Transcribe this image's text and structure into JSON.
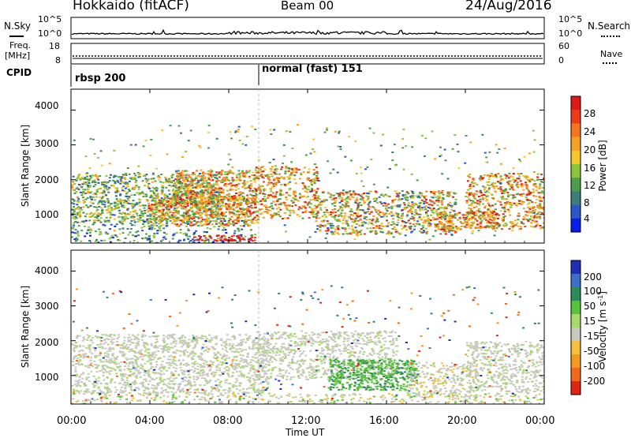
{
  "header": {
    "station": "Hokkaido (fitACF)",
    "beam": "Beam 00",
    "date": "24/Aug/2016"
  },
  "nsky_panel": {
    "label": "N.Sky",
    "right_label": "N.Search",
    "tick_top": "10^5",
    "tick_bottom": "10^0"
  },
  "freq_panel": {
    "label_top": "Freq.",
    "label_unit": "[MHz]",
    "tick_top": "18",
    "tick_bottom": "8",
    "right_tick_top": "60",
    "right_tick_bottom": "0",
    "right_label": "Nave"
  },
  "cpid_panel": {
    "label": "CPID",
    "modes": [
      {
        "text": "rbsp 200",
        "start_hour": 0
      },
      {
        "text": "normal (fast) 151",
        "start_hour": 9.5
      }
    ]
  },
  "chart_data": [
    {
      "type": "heatmap",
      "quantity": "power",
      "ylabel": "Slant Range [km]",
      "ylim": [
        180,
        4600
      ],
      "yticks": [
        "1000",
        "2000",
        "3000",
        "4000"
      ],
      "xlim": [
        0,
        24
      ],
      "colorbar": {
        "label": "Power [dB]",
        "ticks": [
          "4",
          "8",
          "12",
          "16",
          "20",
          "24",
          "28"
        ],
        "colors": [
          "#0a1de6",
          "#2d58c8",
          "#3e7e7a",
          "#4c9e4c",
          "#8cc43c",
          "#f7c72a",
          "#f8a020",
          "#f5741c",
          "#ee3c18",
          "#dd1a14"
        ]
      }
    },
    {
      "type": "heatmap",
      "quantity": "velocity",
      "ylabel": "Slant Range [km]",
      "ylim": [
        180,
        4600
      ],
      "yticks": [
        "1000",
        "2000",
        "3000",
        "4000"
      ],
      "xlim": [
        0,
        24
      ],
      "xlabel": "Time UT",
      "xticks": [
        "00:00",
        "04:00",
        "08:00",
        "12:00",
        "16:00",
        "20:00",
        "00:00"
      ],
      "colorbar": {
        "label_main": "Velocity [m s",
        "label_sup": "-1",
        "label_end": "]",
        "ticks": [
          "200",
          "100",
          "50",
          "15",
          "-15",
          "-50",
          "-100",
          "-200"
        ],
        "colors": [
          "#1e2fb4",
          "#3d6ec8",
          "#2f8a5a",
          "#58c23a",
          "#a9d86e",
          "#c8c8c0",
          "#f5c040",
          "#f59a20",
          "#f06a1a",
          "#e02414"
        ]
      }
    }
  ]
}
